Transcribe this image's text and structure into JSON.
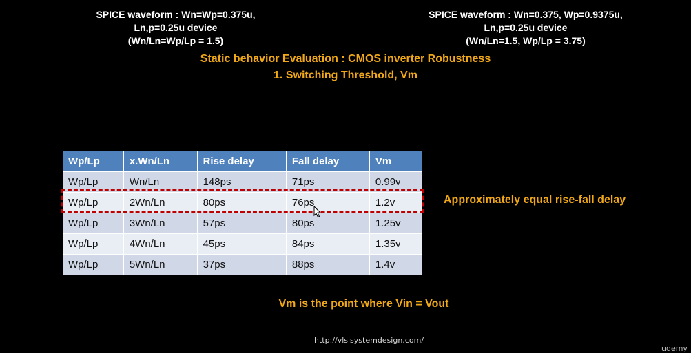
{
  "captions": {
    "left": [
      "SPICE waveform : Wn=Wp=0.375u,",
      "Ln,p=0.25u device",
      "(Wn/Ln=Wp/Lp = 1.5)"
    ],
    "right": [
      "SPICE waveform : Wn=0.375, Wp=0.9375u,",
      "Ln,p=0.25u device",
      "(Wn/Ln=1.5, Wp/Lp = 3.75)"
    ]
  },
  "title": {
    "line1": "Static behavior Evaluation : CMOS inverter Robustness",
    "line2": "1. Switching Threshold, Vm"
  },
  "table": {
    "headers": [
      "Wp/Lp",
      "x.Wn/Ln",
      "Rise delay",
      "Fall delay",
      "Vm"
    ],
    "rows": [
      [
        "Wp/Lp",
        "Wn/Ln",
        "148ps",
        "71ps",
        "0.99v"
      ],
      [
        "Wp/Lp",
        "2Wn/Ln",
        "80ps",
        "76ps",
        "1.2v"
      ],
      [
        "Wp/Lp",
        "3Wn/Ln",
        "57ps",
        "80ps",
        "1.25v"
      ],
      [
        "Wp/Lp",
        "4Wn/Ln",
        "45ps",
        "84ps",
        "1.35v"
      ],
      [
        "Wp/Lp",
        "5Wn/Ln",
        "37ps",
        "88ps",
        "1.4v"
      ]
    ]
  },
  "side_note": "Approximately equal rise-fall delay",
  "vm_note": "Vm is the point where Vin = Vout",
  "footer": {
    "url": "http://vlsisystemdesign.com/",
    "brand": "udemy"
  },
  "colors": {
    "accent": "#f0a818",
    "table_header": "#4f81bd",
    "highlight": "#c00000"
  }
}
